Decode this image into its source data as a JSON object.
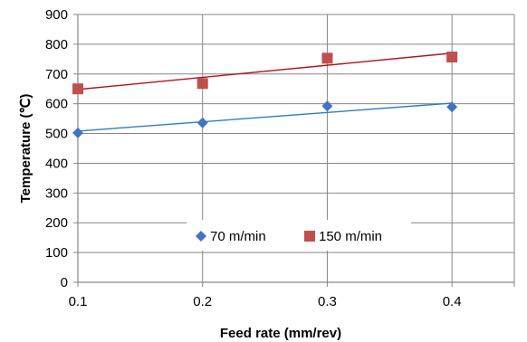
{
  "chart_data": {
    "type": "scatter",
    "xlabel": "Feed rate (mm/rev)",
    "ylabel": "Temperature (℃)",
    "xlim": [
      0.1,
      0.45
    ],
    "ylim": [
      0,
      900
    ],
    "x_ticks": [
      "0.1",
      "0.2",
      "0.3",
      "0.4"
    ],
    "y_ticks": [
      "0",
      "100",
      "200",
      "300",
      "400",
      "500",
      "600",
      "700",
      "800",
      "900"
    ],
    "grid": true,
    "legend_position": "bottom-center (inside plot)",
    "series": [
      {
        "name": "70 m/min",
        "marker": "diamond",
        "color": "#4472C4",
        "x": [
          0.1,
          0.2,
          0.3,
          0.4
        ],
        "y": [
          502,
          536,
          592,
          589
        ],
        "trendline": {
          "type": "linear",
          "color": "#2E7EBE",
          "from": [
            0.1,
            508
          ],
          "to": [
            0.4,
            602
          ]
        }
      },
      {
        "name": "150 m/min",
        "marker": "square",
        "color": "#C0504D",
        "x": [
          0.1,
          0.2,
          0.3,
          0.4
        ],
        "y": [
          650,
          668,
          753,
          757
        ],
        "trendline": {
          "type": "linear",
          "color": "#B0121B",
          "from": [
            0.1,
            648
          ],
          "to": [
            0.4,
            770
          ]
        }
      }
    ]
  }
}
